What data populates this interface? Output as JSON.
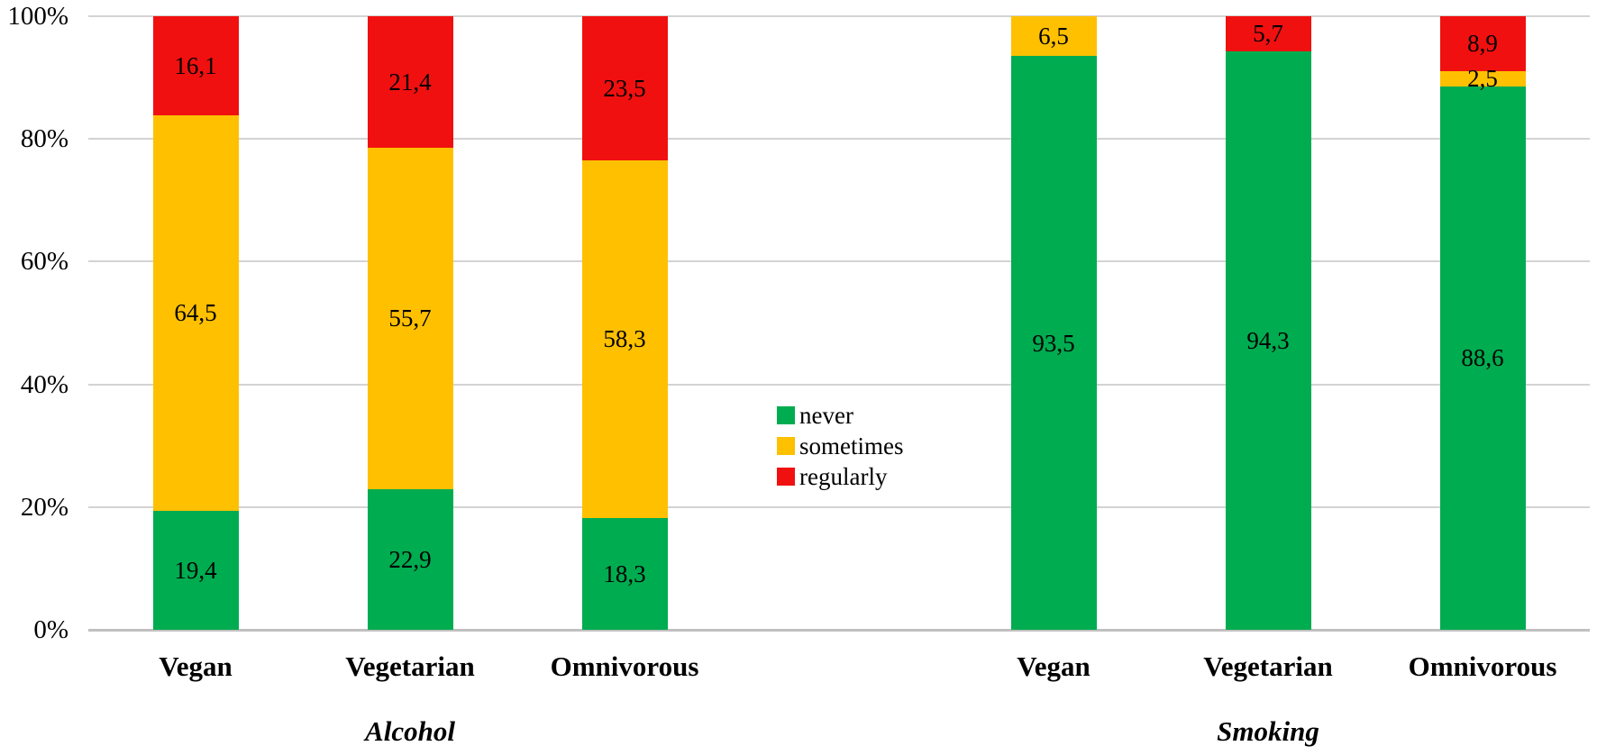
{
  "chart_data": {
    "type": "bar",
    "subtype": "stacked-100-percent",
    "title": "",
    "xlabel": "",
    "ylabel": "",
    "decimal_separator": ",",
    "y_axis": {
      "min": 0,
      "max": 100,
      "step": 20,
      "tick_labels": [
        "0%",
        "20%",
        "40%",
        "60%",
        "80%",
        "100%"
      ],
      "grid": true
    },
    "stack_order_bottom_to_top": [
      "never",
      "sometimes",
      "regularly"
    ],
    "series": [
      {
        "name": "never",
        "color": "#00AC50"
      },
      {
        "name": "sometimes",
        "color": "#FFC000"
      },
      {
        "name": "regularly",
        "color": "#F01010"
      }
    ],
    "groups": [
      {
        "label": "Alcohol",
        "categories": [
          "Vegan",
          "Vegetarian",
          "Omnivorous"
        ],
        "values": {
          "never": [
            19.4,
            22.9,
            18.3
          ],
          "sometimes": [
            64.5,
            55.7,
            58.3
          ],
          "regularly": [
            16.1,
            21.4,
            23.5
          ]
        }
      },
      {
        "label": "Smoking",
        "categories": [
          "Vegan",
          "Vegetarian",
          "Omnivorous"
        ],
        "values": {
          "never": [
            93.5,
            94.3,
            88.6
          ],
          "sometimes": [
            6.5,
            0,
            2.5
          ],
          "regularly": [
            0,
            5.7,
            8.9
          ]
        }
      }
    ],
    "legend": {
      "position": "center-between-groups",
      "items": [
        {
          "label": "never",
          "color": "#00AC50"
        },
        {
          "label": "sometimes",
          "color": "#FFC000"
        },
        {
          "label": "regularly",
          "color": "#F01010"
        }
      ]
    },
    "colors": {
      "gridline": "#d3d3d3",
      "baseline": "#c0c0c0",
      "text": "#000000",
      "background": "#ffffff"
    }
  }
}
